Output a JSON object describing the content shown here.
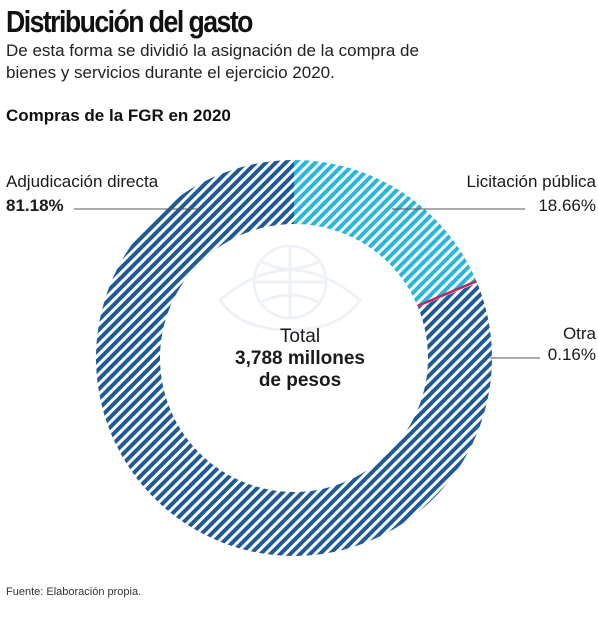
{
  "header": {
    "title": "Distribución del gasto",
    "subtitle": "De esta forma se dividió la asignación de la compra de bienes y servicios durante el ejercicio 2020.",
    "chart_title": "Compras de la FGR en 2020"
  },
  "footer": {
    "source": "Fuente: Elaboración propia."
  },
  "center": {
    "total_label": "Total",
    "total_value_line1": "3,788 millones",
    "total_value_line2": "de pesos"
  },
  "labels": {
    "adjudicacion_name": "Adjudicación directa",
    "adjudicacion_pct": "81.18%",
    "licitacion_name": "Licitación pública",
    "licitacion_pct": "18.66%",
    "otra_name": "Otra",
    "otra_pct": "0.16%"
  },
  "colors": {
    "adjudicacion": "#1f5a96",
    "licitacion": "#27b7da",
    "otra": "#c0245a",
    "leader": "#555555"
  },
  "chart_data": {
    "type": "pie",
    "title": "Compras de la FGR en 2020",
    "donut": true,
    "categories": [
      "Adjudicación directa",
      "Licitación pública",
      "Otra"
    ],
    "values": [
      81.18,
      18.66,
      0.16
    ],
    "unit": "%",
    "total": "3,788 millones de pesos"
  }
}
